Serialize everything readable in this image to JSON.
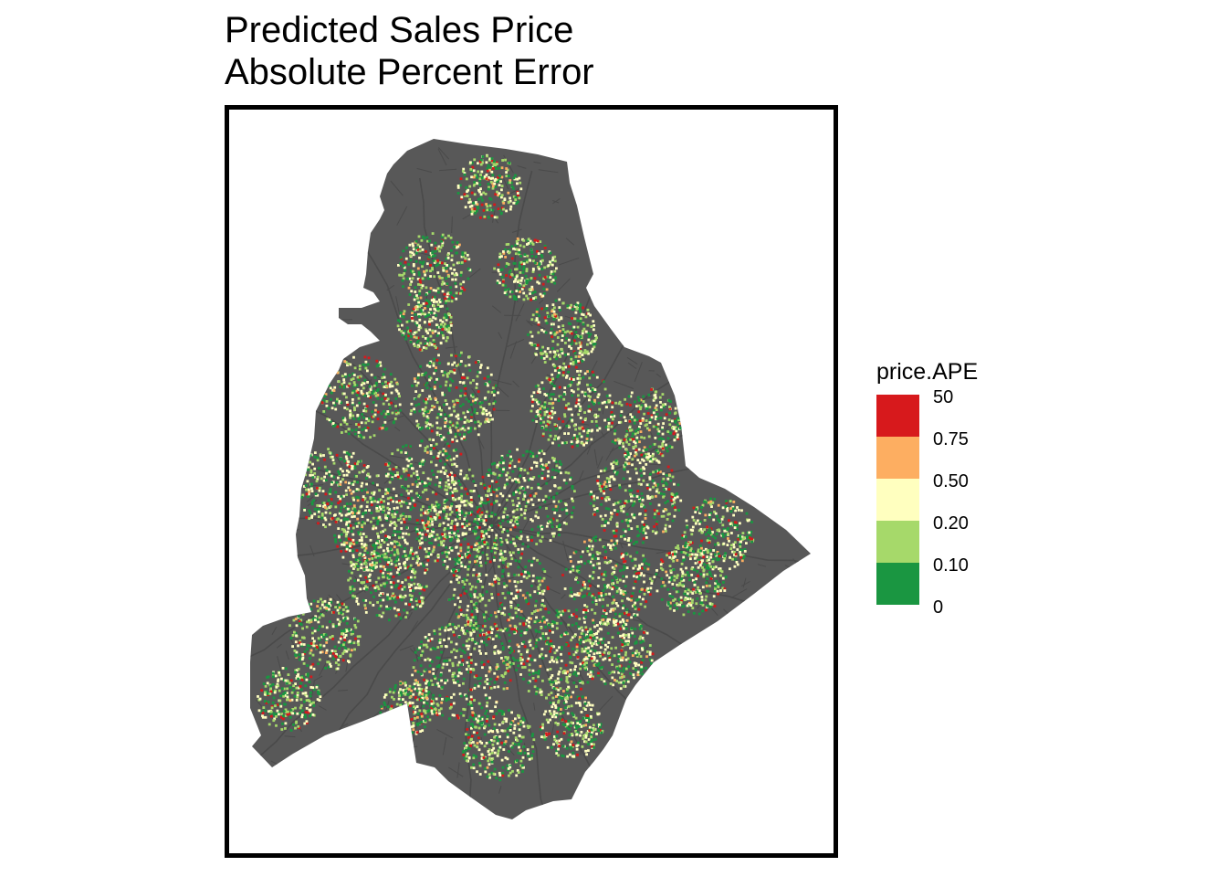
{
  "title": {
    "line1": "Predicted Sales Price",
    "line2": "Absolute Percent Error"
  },
  "map": {
    "region_fill": "#585858",
    "road_color": "#4a4a4a",
    "frame_color": "#000000",
    "point_categories": [
      {
        "range": "0 - 0.10",
        "color": "#1a9641",
        "share": 0.28
      },
      {
        "range": "0.10 - 0.20",
        "color": "#a6d96a",
        "share": 0.28
      },
      {
        "range": "0.20 - 0.50",
        "color": "#ffffc0",
        "share": 0.32
      },
      {
        "range": "0.50 - 0.75",
        "color": "#fdae61",
        "share": 0.04
      },
      {
        "range": "0.75 - 50",
        "color": "#d7191c",
        "share": 0.08
      }
    ]
  },
  "legend": {
    "title": "price.APE",
    "colors": [
      "#d7191c",
      "#fdae61",
      "#ffffbf",
      "#a6d96a",
      "#1a9641"
    ],
    "breaks": [
      "50",
      "0.75",
      "0.50",
      "0.20",
      "0.10",
      "0"
    ]
  }
}
